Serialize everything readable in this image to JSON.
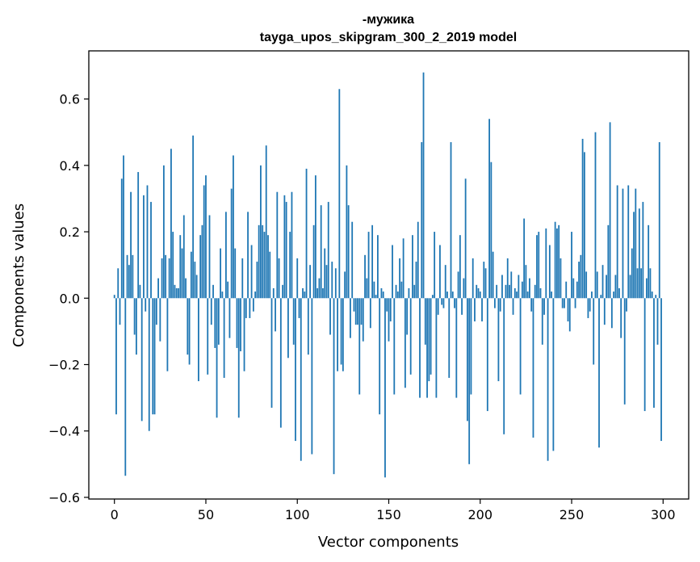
{
  "chart_data": {
    "type": "bar",
    "title_line1": "-мужика",
    "title_line2": "tayga_upos_skipgram_300_2_2019 model",
    "xlabel": "Vector components",
    "ylabel": "Components values",
    "xlim": [
      -14,
      314
    ],
    "ylim": [
      -0.605,
      0.745
    ],
    "xticks": [
      0,
      50,
      100,
      150,
      200,
      250,
      300
    ],
    "xtick_labels": [
      "0",
      "50",
      "100",
      "150",
      "200",
      "250",
      "300"
    ],
    "yticks": [
      -0.6,
      -0.4,
      -0.2,
      0.0,
      0.2,
      0.4,
      0.6
    ],
    "ytick_labels": [
      "−0.6",
      "−0.4",
      "−0.2",
      "0.0",
      "0.2",
      "0.4",
      "0.6"
    ],
    "grid": false,
    "bar_color": "#1f77b4",
    "values": [
      0.01,
      -0.35,
      0.09,
      -0.08,
      0.36,
      0.43,
      -0.535,
      0.13,
      0.1,
      0.32,
      0.13,
      -0.11,
      -0.17,
      0.38,
      0.04,
      -0.37,
      0.31,
      -0.04,
      0.34,
      -0.4,
      0.29,
      -0.35,
      -0.35,
      -0.08,
      0.06,
      -0.13,
      0.12,
      0.4,
      0.13,
      -0.22,
      0.12,
      0.45,
      0.2,
      0.04,
      0.03,
      0.03,
      0.19,
      0.15,
      0.25,
      0.06,
      -0.17,
      -0.2,
      0.14,
      0.49,
      0.11,
      0.07,
      -0.25,
      0.19,
      0.22,
      0.34,
      0.37,
      -0.23,
      0.25,
      -0.08,
      0.04,
      -0.15,
      -0.36,
      -0.14,
      0.15,
      0.02,
      -0.24,
      0.26,
      0.05,
      -0.12,
      0.33,
      0.43,
      0.15,
      -0.15,
      -0.36,
      -0.16,
      0.12,
      -0.22,
      -0.06,
      0.26,
      -0.06,
      0.16,
      -0.04,
      0.02,
      0.11,
      0.22,
      0.4,
      0.22,
      0.2,
      0.46,
      0.19,
      0.14,
      -0.33,
      0.03,
      -0.1,
      0.32,
      0.12,
      -0.39,
      0.04,
      0.31,
      0.29,
      -0.18,
      0.2,
      0.32,
      -0.14,
      -0.43,
      0.12,
      -0.06,
      -0.49,
      0.03,
      0.02,
      0.39,
      -0.17,
      0.1,
      -0.47,
      0.22,
      0.37,
      0.03,
      0.06,
      0.28,
      0.03,
      0.15,
      0.1,
      0.29,
      -0.11,
      0.11,
      -0.53,
      0.09,
      -0.22,
      0.63,
      -0.2,
      -0.22,
      0.08,
      0.4,
      0.28,
      -0.12,
      0.23,
      -0.04,
      -0.08,
      -0.08,
      -0.29,
      -0.08,
      -0.13,
      0.13,
      0.06,
      0.2,
      -0.09,
      0.22,
      0.05,
      0.01,
      0.19,
      -0.35,
      0.03,
      0.02,
      -0.54,
      -0.04,
      -0.13,
      -0.07,
      0.16,
      -0.29,
      0.04,
      0.02,
      0.12,
      0.05,
      0.18,
      -0.27,
      -0.11,
      0.03,
      -0.23,
      0.19,
      0.04,
      0.11,
      0.23,
      -0.3,
      0.47,
      0.68,
      -0.14,
      -0.3,
      -0.25,
      -0.23,
      0.01,
      0.2,
      -0.3,
      -0.05,
      0.16,
      -0.02,
      -0.03,
      0.1,
      0.02,
      -0.24,
      0.47,
      0.02,
      -0.03,
      -0.3,
      0.08,
      0.19,
      -0.05,
      0.06,
      0.36,
      -0.37,
      -0.5,
      -0.29,
      0.12,
      -0.07,
      0.04,
      0.03,
      0.02,
      -0.07,
      0.11,
      0.09,
      -0.34,
      0.54,
      0.41,
      0.14,
      -0.03,
      0.04,
      -0.25,
      -0.04,
      0.07,
      -0.41,
      0.04,
      0.12,
      0.04,
      0.08,
      -0.05,
      0.03,
      0.02,
      0.07,
      -0.29,
      0.05,
      0.24,
      0.1,
      0.02,
      0.06,
      -0.04,
      -0.42,
      0.04,
      0.19,
      0.2,
      0.03,
      -0.14,
      -0.05,
      0.21,
      -0.49,
      0.16,
      0.02,
      -0.46,
      0.23,
      0.21,
      0.22,
      0.12,
      -0.03,
      -0.03,
      0.05,
      -0.07,
      -0.1,
      0.2,
      0.06,
      -0.03,
      0.05,
      0.11,
      0.13,
      0.48,
      0.44,
      0.08,
      -0.06,
      -0.04,
      0.02,
      -0.2,
      0.5,
      0.08,
      -0.45,
      0.01,
      0.1,
      -0.08,
      0.07,
      0.22,
      0.53,
      -0.09,
      0.02,
      0.07,
      0.34,
      0.03,
      -0.12,
      0.33,
      -0.32,
      -0.04,
      0.34,
      0.07,
      0.15,
      0.26,
      0.33,
      0.09,
      0.27,
      0.09,
      0.29,
      -0.34,
      0.06,
      0.22,
      0.09,
      0.02,
      -0.33,
      0.01,
      -0.14,
      0.47,
      -0.43
    ]
  }
}
